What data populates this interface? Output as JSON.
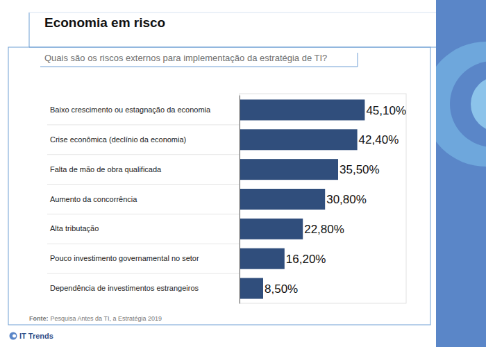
{
  "chart_data": {
    "type": "bar",
    "orientation": "horizontal",
    "title": "Economia em risco",
    "subtitle": "Quais são os riscos externos para implementação da estratégia de TI?",
    "categories": [
      "Baixo crescimento ou estagnação da economia",
      "Crise econômica (declínio da economia)",
      "Falta de mão de obra qualificada",
      "Aumento da concorrência",
      "Alta tributação",
      "Pouco investimento governamental no setor",
      "Dependência de investimentos estrangeiros"
    ],
    "values": [
      45.1,
      42.4,
      35.5,
      30.8,
      22.8,
      16.2,
      8.5
    ],
    "value_labels": [
      "45,10%",
      "42,40%",
      "35,50%",
      "30,80%",
      "22,80%",
      "16,20%",
      "8,50%"
    ],
    "color": "#304e7c",
    "xlim": [
      0,
      60
    ],
    "grid": false,
    "data_labels": true,
    "tick_labels": "y",
    "source_label": "Fonte:",
    "source": "Pesquisa Antes da TI, a Estratégia 2019",
    "brand": "IT Trends"
  }
}
